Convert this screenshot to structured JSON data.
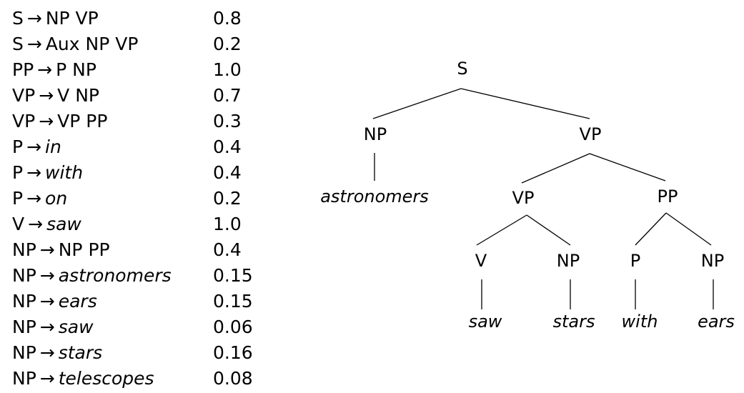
{
  "grammar": {
    "arrow": "→",
    "rules": [
      {
        "lhs": "S",
        "rhs": "NP VP",
        "terminal": false,
        "prob": "0.8"
      },
      {
        "lhs": "S",
        "rhs": "Aux NP VP",
        "terminal": false,
        "prob": "0.2"
      },
      {
        "lhs": "PP",
        "rhs": "P NP",
        "terminal": false,
        "prob": "1.0"
      },
      {
        "lhs": "VP",
        "rhs": "V NP",
        "terminal": false,
        "prob": "0.7"
      },
      {
        "lhs": "VP",
        "rhs": "VP PP",
        "terminal": false,
        "prob": "0.3"
      },
      {
        "lhs": "P",
        "rhs": "in",
        "terminal": true,
        "prob": "0.4"
      },
      {
        "lhs": "P",
        "rhs": "with",
        "terminal": true,
        "prob": "0.4"
      },
      {
        "lhs": "P",
        "rhs": "on",
        "terminal": true,
        "prob": "0.2"
      },
      {
        "lhs": "V",
        "rhs": "saw",
        "terminal": true,
        "prob": "1.0"
      },
      {
        "lhs": "NP",
        "rhs": "NP PP",
        "terminal": false,
        "prob": "0.4"
      },
      {
        "lhs": "NP",
        "rhs": "astronomers",
        "terminal": true,
        "prob": "0.15"
      },
      {
        "lhs": "NP",
        "rhs": "ears",
        "terminal": true,
        "prob": "0.15"
      },
      {
        "lhs": "NP",
        "rhs": "saw",
        "terminal": true,
        "prob": "0.06"
      },
      {
        "lhs": "NP",
        "rhs": "stars",
        "terminal": true,
        "prob": "0.16"
      },
      {
        "lhs": "NP",
        "rhs": "telescopes",
        "terminal": true,
        "prob": "0.08"
      }
    ]
  },
  "tree": {
    "nodes": [
      {
        "id": "s",
        "label": "S",
        "word": false
      },
      {
        "id": "np1",
        "label": "NP",
        "word": false
      },
      {
        "id": "vp1",
        "label": "VP",
        "word": false
      },
      {
        "id": "w_astr",
        "label": "astronomers",
        "word": true
      },
      {
        "id": "vp2",
        "label": "VP",
        "word": false
      },
      {
        "id": "pp",
        "label": "PP",
        "word": false
      },
      {
        "id": "v",
        "label": "V",
        "word": false
      },
      {
        "id": "np2",
        "label": "NP",
        "word": false
      },
      {
        "id": "p",
        "label": "P",
        "word": false
      },
      {
        "id": "np3",
        "label": "NP",
        "word": false
      },
      {
        "id": "w_saw",
        "label": "saw",
        "word": true
      },
      {
        "id": "w_stars",
        "label": "stars",
        "word": true
      },
      {
        "id": "w_with",
        "label": "with",
        "word": true
      },
      {
        "id": "w_ears",
        "label": "ears",
        "word": true
      }
    ],
    "edges": [
      [
        "s",
        "np1"
      ],
      [
        "s",
        "vp1"
      ],
      [
        "np1",
        "w_astr"
      ],
      [
        "vp1",
        "vp2"
      ],
      [
        "vp1",
        "pp"
      ],
      [
        "vp2",
        "v"
      ],
      [
        "vp2",
        "np2"
      ],
      [
        "pp",
        "p"
      ],
      [
        "pp",
        "np3"
      ],
      [
        "v",
        "w_saw"
      ],
      [
        "np2",
        "w_stars"
      ],
      [
        "p",
        "w_with"
      ],
      [
        "np3",
        "w_ears"
      ]
    ]
  }
}
